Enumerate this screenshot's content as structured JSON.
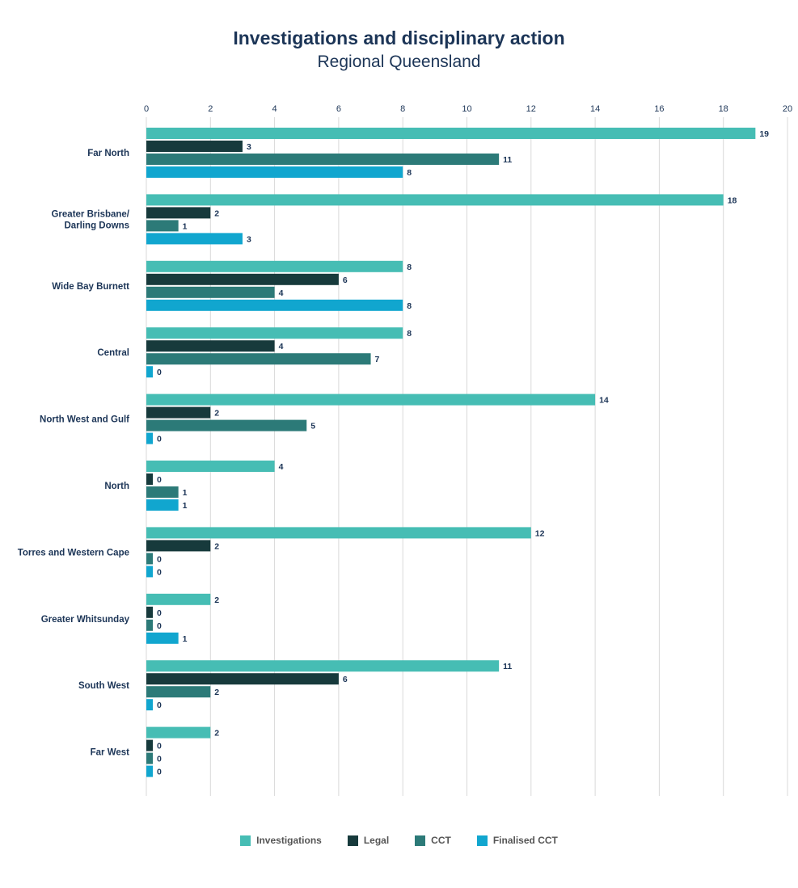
{
  "chart_data": {
    "type": "bar",
    "orientation": "horizontal",
    "title": "Investigations and disciplinary action",
    "subtitle": "Regional Queensland",
    "xlim": [
      0,
      20
    ],
    "xticks": [
      0,
      2,
      4,
      6,
      8,
      10,
      12,
      14,
      16,
      18,
      20
    ],
    "grid": "vertical",
    "legend_position": "bottom",
    "categories": [
      [
        "Far North"
      ],
      [
        "Greater Brisbane/",
        "Darling Downs"
      ],
      [
        "Wide Bay Burnett"
      ],
      [
        "Central"
      ],
      [
        "North West and Gulf"
      ],
      [
        "North"
      ],
      [
        "Torres and Western Cape"
      ],
      [
        "Greater Whitsunday"
      ],
      [
        "South West"
      ],
      [
        "Far West"
      ]
    ],
    "series": [
      {
        "name": "Investigations",
        "color": "#46bdb4",
        "values": [
          19,
          18,
          8,
          8,
          14,
          4,
          12,
          2,
          11,
          2
        ]
      },
      {
        "name": "Legal",
        "color": "#173a3c",
        "values": [
          3,
          2,
          6,
          4,
          2,
          0,
          2,
          0,
          6,
          0
        ]
      },
      {
        "name": "CCT",
        "color": "#2c7a78",
        "values": [
          11,
          1,
          4,
          7,
          5,
          1,
          0,
          0,
          2,
          0
        ]
      },
      {
        "name": "Finalised CCT",
        "color": "#11a6cf",
        "values": [
          8,
          3,
          8,
          0,
          0,
          1,
          0,
          1,
          0,
          0
        ]
      }
    ]
  }
}
